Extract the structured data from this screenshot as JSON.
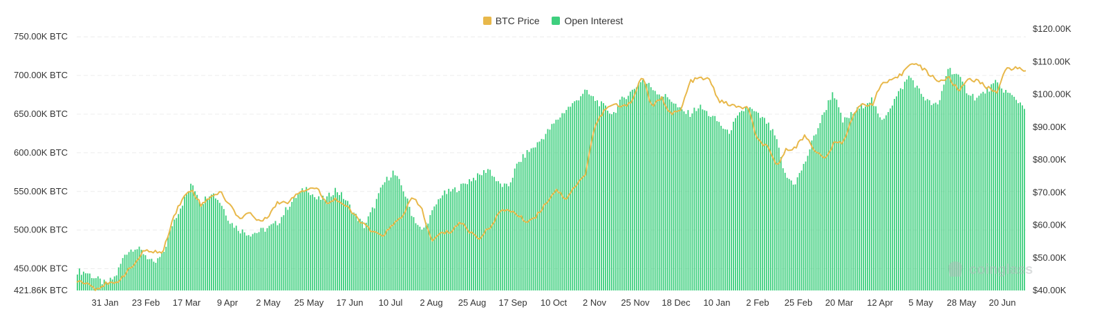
{
  "legend": {
    "price_label": "BTC Price",
    "oi_label": "Open Interest"
  },
  "watermark": {
    "text": "coinglass"
  },
  "colors": {
    "price": "#e8b84a",
    "open_interest": "#3ecf7e",
    "grid": "#ececec",
    "text": "#333333"
  },
  "chart_data": {
    "type": "bar",
    "grid": true,
    "legend_position": "top-center",
    "x_tick_labels": [
      "31 Jan",
      "23 Feb",
      "17 Mar",
      "9 Apr",
      "2 May",
      "25 May",
      "17 Jun",
      "10 Jul",
      "2 Aug",
      "25 Aug",
      "17 Sep",
      "10 Oct",
      "2 Nov",
      "25 Nov",
      "18 Dec",
      "10 Jan",
      "2 Feb",
      "25 Feb",
      "20 Mar",
      "12 Apr",
      "5 May",
      "28 May",
      "20 Jun"
    ],
    "left_axis": {
      "unit": "BTC",
      "ylim": [
        421860,
        760000
      ],
      "tick_values": [
        421860,
        450000,
        500000,
        550000,
        600000,
        650000,
        700000,
        750000
      ],
      "tick_labels": [
        "421.86K BTC",
        "450.00K BTC",
        "500.00K BTC",
        "550.00K BTC",
        "600.00K BTC",
        "650.00K BTC",
        "700.00K BTC",
        "750.00K BTC"
      ]
    },
    "right_axis": {
      "unit": "USD",
      "ylim": [
        40000,
        120000
      ],
      "tick_values": [
        40000,
        50000,
        60000,
        70000,
        80000,
        90000,
        100000,
        110000,
        120000
      ],
      "tick_labels": [
        "$40.00K",
        "$50.00K",
        "$60.00K",
        "$70.00K",
        "$80.00K",
        "$90.00K",
        "$100.00K",
        "$110.00K",
        "$120.00K"
      ]
    },
    "series": [
      {
        "name": "Open Interest",
        "axis": "left",
        "type": "bar",
        "anchors": [
          [
            0,
            447000
          ],
          [
            1,
            445000
          ],
          [
            2,
            437000
          ],
          [
            3,
            430000
          ],
          [
            4,
            440000
          ],
          [
            5,
            470000
          ],
          [
            6,
            478000
          ],
          [
            7,
            470000
          ],
          [
            8,
            455000
          ],
          [
            9,
            470000
          ],
          [
            10,
            510000
          ],
          [
            11,
            535000
          ],
          [
            12,
            560000
          ],
          [
            13,
            535000
          ],
          [
            14,
            550000
          ],
          [
            15,
            535000
          ],
          [
            16,
            510000
          ],
          [
            17,
            500000
          ],
          [
            18,
            495000
          ],
          [
            19,
            498000
          ],
          [
            20,
            503000
          ],
          [
            21,
            510000
          ],
          [
            22,
            530000
          ],
          [
            23,
            545000
          ],
          [
            24,
            555000
          ],
          [
            25,
            540000
          ],
          [
            26,
            540000
          ],
          [
            27,
            553000
          ],
          [
            28,
            540000
          ],
          [
            29,
            520000
          ],
          [
            30,
            505000
          ],
          [
            31,
            530000
          ],
          [
            32,
            560000
          ],
          [
            33,
            575000
          ],
          [
            34,
            555000
          ],
          [
            35,
            520000
          ],
          [
            36,
            498000
          ],
          [
            37,
            520000
          ],
          [
            38,
            545000
          ],
          [
            39,
            550000
          ],
          [
            40,
            555000
          ],
          [
            41,
            565000
          ],
          [
            42,
            570000
          ],
          [
            43,
            580000
          ],
          [
            44,
            560000
          ],
          [
            45,
            555000
          ],
          [
            46,
            585000
          ],
          [
            47,
            600000
          ],
          [
            48,
            610000
          ],
          [
            49,
            625000
          ],
          [
            50,
            640000
          ],
          [
            51,
            655000
          ],
          [
            52,
            665000
          ],
          [
            53,
            680000
          ],
          [
            54,
            670000
          ],
          [
            55,
            660000
          ],
          [
            56,
            650000
          ],
          [
            57,
            670000
          ],
          [
            58,
            680000
          ],
          [
            59,
            695000
          ],
          [
            60,
            685000
          ],
          [
            61,
            675000
          ],
          [
            62,
            670000
          ],
          [
            63,
            655000
          ],
          [
            64,
            650000
          ],
          [
            65,
            660000
          ],
          [
            66,
            650000
          ],
          [
            67,
            640000
          ],
          [
            68,
            625000
          ],
          [
            69,
            645000
          ],
          [
            70,
            660000
          ],
          [
            71,
            650000
          ],
          [
            72,
            640000
          ],
          [
            73,
            620000
          ],
          [
            74,
            570000
          ],
          [
            75,
            560000
          ],
          [
            76,
            585000
          ],
          [
            77,
            620000
          ],
          [
            78,
            650000
          ],
          [
            79,
            680000
          ],
          [
            80,
            640000
          ],
          [
            81,
            650000
          ],
          [
            82,
            660000
          ],
          [
            83,
            670000
          ],
          [
            84,
            640000
          ],
          [
            85,
            660000
          ],
          [
            86,
            680000
          ],
          [
            87,
            700000
          ],
          [
            88,
            680000
          ],
          [
            89,
            665000
          ],
          [
            90,
            660000
          ],
          [
            91,
            710000
          ],
          [
            92,
            700000
          ],
          [
            93,
            680000
          ],
          [
            94,
            670000
          ],
          [
            95,
            680000
          ],
          [
            96,
            690000
          ],
          [
            97,
            680000
          ],
          [
            98,
            670000
          ],
          [
            99,
            660000
          ]
        ]
      },
      {
        "name": "BTC Price",
        "axis": "right",
        "type": "line",
        "anchors": [
          [
            0,
            43000
          ],
          [
            1,
            42500
          ],
          [
            2,
            40500
          ],
          [
            3,
            42000
          ],
          [
            4,
            42000
          ],
          [
            5,
            45000
          ],
          [
            6,
            48000
          ],
          [
            7,
            52000
          ],
          [
            8,
            52000
          ],
          [
            9,
            51500
          ],
          [
            10,
            62000
          ],
          [
            11,
            68000
          ],
          [
            12,
            71000
          ],
          [
            13,
            66000
          ],
          [
            14,
            69000
          ],
          [
            15,
            70000
          ],
          [
            16,
            66000
          ],
          [
            17,
            62000
          ],
          [
            18,
            64000
          ],
          [
            19,
            61000
          ],
          [
            20,
            63000
          ],
          [
            21,
            67000
          ],
          [
            22,
            67000
          ],
          [
            23,
            70000
          ],
          [
            24,
            71000
          ],
          [
            25,
            71500
          ],
          [
            26,
            67000
          ],
          [
            27,
            68000
          ],
          [
            28,
            66000
          ],
          [
            29,
            63000
          ],
          [
            30,
            60000
          ],
          [
            31,
            57500
          ],
          [
            32,
            57000
          ],
          [
            33,
            60000
          ],
          [
            34,
            63000
          ],
          [
            35,
            68500
          ],
          [
            36,
            65000
          ],
          [
            37,
            55000
          ],
          [
            38,
            57500
          ],
          [
            39,
            58000
          ],
          [
            40,
            61000
          ],
          [
            41,
            58000
          ],
          [
            42,
            56000
          ],
          [
            43,
            59000
          ],
          [
            44,
            63500
          ],
          [
            45,
            65000
          ],
          [
            46,
            63000
          ],
          [
            47,
            61000
          ],
          [
            48,
            63000
          ],
          [
            49,
            67000
          ],
          [
            50,
            71000
          ],
          [
            51,
            68000
          ],
          [
            52,
            72000
          ],
          [
            53,
            75000
          ],
          [
            54,
            90000
          ],
          [
            55,
            95000
          ],
          [
            56,
            97000
          ],
          [
            57,
            96000
          ],
          [
            58,
            98500
          ],
          [
            59,
            106000
          ],
          [
            60,
            96000
          ],
          [
            61,
            99000
          ],
          [
            62,
            94000
          ],
          [
            63,
            95000
          ],
          [
            64,
            104000
          ],
          [
            65,
            105000
          ],
          [
            66,
            104500
          ],
          [
            67,
            98000
          ],
          [
            68,
            97000
          ],
          [
            69,
            96000
          ],
          [
            70,
            96000
          ],
          [
            71,
            86000
          ],
          [
            72,
            84000
          ],
          [
            73,
            78000
          ],
          [
            74,
            83000
          ],
          [
            75,
            84000
          ],
          [
            76,
            87500
          ],
          [
            77,
            83000
          ],
          [
            78,
            80000
          ],
          [
            79,
            85000
          ],
          [
            80,
            85500
          ],
          [
            81,
            94000
          ],
          [
            82,
            97000
          ],
          [
            83,
            97000
          ],
          [
            84,
            103500
          ],
          [
            85,
            104000
          ],
          [
            86,
            106000
          ],
          [
            87,
            110000
          ],
          [
            88,
            108500
          ],
          [
            89,
            106000
          ],
          [
            90,
            104000
          ],
          [
            91,
            105000
          ],
          [
            92,
            101000
          ],
          [
            93,
            105000
          ],
          [
            94,
            104000
          ],
          [
            95,
            102000
          ],
          [
            96,
            101000
          ],
          [
            97,
            108000
          ],
          [
            98,
            108000
          ],
          [
            99,
            107500
          ]
        ]
      }
    ]
  }
}
